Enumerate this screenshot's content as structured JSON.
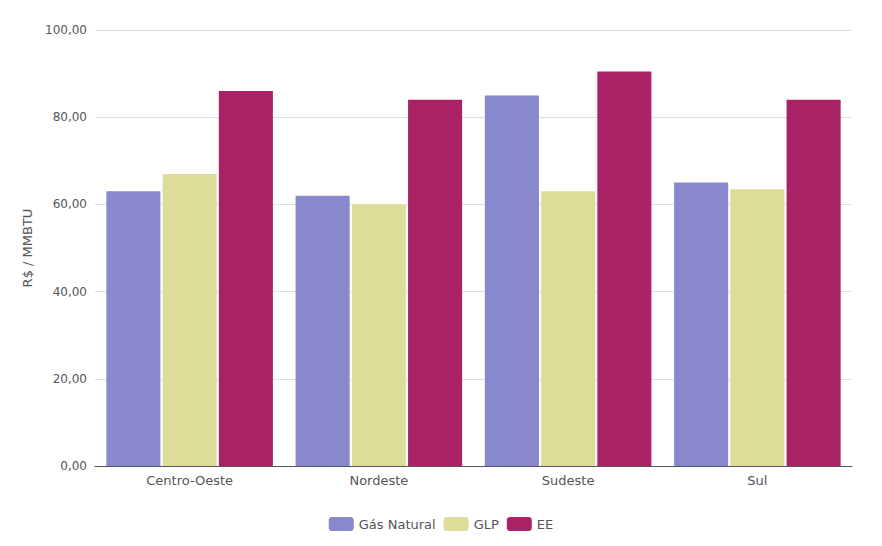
{
  "chart_data": {
    "type": "bar",
    "categories": [
      "Centro-Oeste",
      "Nordeste",
      "Sudeste",
      "Sul"
    ],
    "series": [
      {
        "name": "Gás Natural",
        "color": "#8888CC",
        "values": [
          63.0,
          62.0,
          85.0,
          65.0
        ]
      },
      {
        "name": "GLP",
        "color": "#DDDD99",
        "values": [
          67.0,
          60.0,
          63.0,
          63.5
        ]
      },
      {
        "name": "EE",
        "color": "#AA2266",
        "values": [
          86.0,
          84.0,
          90.5,
          84.0
        ]
      }
    ],
    "ylabel": "R$ / MMBTU",
    "ylim": [
      0,
      100
    ],
    "yticks": [
      {
        "value": 0,
        "label": "0,00"
      },
      {
        "value": 20,
        "label": "20,00"
      },
      {
        "value": 40,
        "label": "40,00"
      },
      {
        "value": 60,
        "label": "60,00"
      },
      {
        "value": 80,
        "label": "80,00"
      },
      {
        "value": 100,
        "label": "100,00"
      }
    ],
    "grid": true,
    "legend": "bottom"
  }
}
